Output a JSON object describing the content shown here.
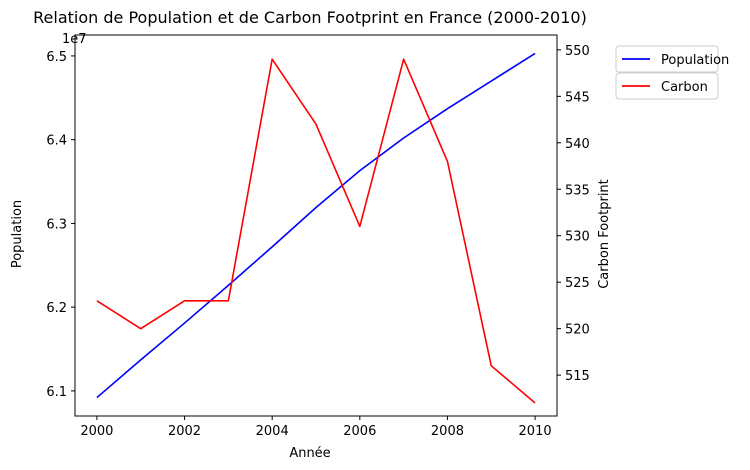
{
  "chart_data": {
    "type": "line",
    "title": "Relation de Population et de Carbon Footprint en France (2000-2010)",
    "xlabel": "Année",
    "ylabel_left": "Population",
    "ylabel_right": "Carbon Footprint",
    "left_offset_text": "1e7",
    "x": [
      2000,
      2001,
      2002,
      2003,
      2004,
      2005,
      2006,
      2007,
      2008,
      2009,
      2010
    ],
    "xlim": [
      1999.5,
      2010.5
    ],
    "x_ticks": [
      2000,
      2002,
      2004,
      2006,
      2008,
      2010
    ],
    "x_tick_labels": [
      "2000",
      "2002",
      "2004",
      "2006",
      "2008",
      "2010"
    ],
    "ylim_left": [
      6.07,
      6.525
    ],
    "y_ticks_left": [
      6.1,
      6.2,
      6.3,
      6.4,
      6.5
    ],
    "y_tick_labels_left": [
      "6.1",
      "6.2",
      "6.3",
      "6.4",
      "6.5"
    ],
    "ylim_right": [
      510.6,
      551.6
    ],
    "y_ticks_right": [
      515,
      520,
      525,
      530,
      535,
      540,
      545,
      550
    ],
    "y_tick_labels_right": [
      "515",
      "520",
      "525",
      "530",
      "535",
      "540",
      "545",
      "550"
    ],
    "grid": false,
    "legend_position": "outside-top-right",
    "series": [
      {
        "name": "Population",
        "axis": "left",
        "color": "#0000ff",
        "values": [
          6.092,
          6.137,
          6.181,
          6.226,
          6.272,
          6.319,
          6.363,
          6.402,
          6.437,
          6.47,
          6.503
        ]
      },
      {
        "name": "Carbon",
        "axis": "right",
        "color": "#ff0000",
        "values": [
          523,
          520,
          523,
          523,
          549,
          542,
          531,
          549,
          538,
          516,
          512
        ]
      }
    ]
  }
}
